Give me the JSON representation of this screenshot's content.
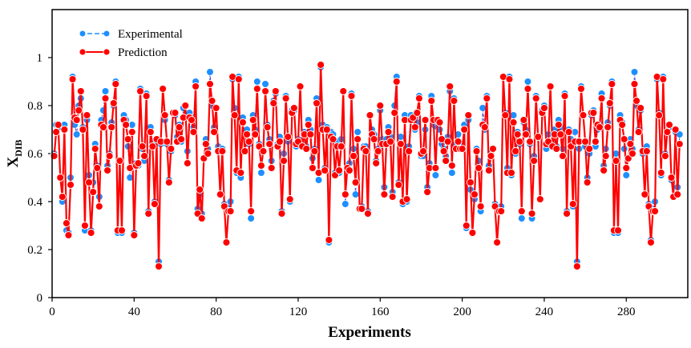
{
  "chart_data": {
    "type": "line",
    "title": "",
    "xlabel": "Experiments",
    "ylabel_main": "X",
    "ylabel_sub": "DIB",
    "xlim": [
      0,
      310
    ],
    "ylim": [
      0,
      1.2
    ],
    "xticks": [
      0,
      40,
      80,
      120,
      160,
      200,
      240,
      280
    ],
    "yticks": [
      0,
      0.2,
      0.4,
      0.6,
      0.8,
      1
    ],
    "ytick_labels": [
      "0",
      "0.2",
      "0.4",
      "0.6",
      "0.8",
      "1"
    ],
    "grid": false,
    "legend_position": "top-left",
    "x_start": 1,
    "x_step": 1,
    "series": [
      {
        "name": "Experimental",
        "color": "#1e8fff",
        "style": "dashed-line-with-markers",
        "values": [
          0.6,
          0.72,
          0.71,
          0.5,
          0.4,
          0.72,
          0.28,
          0.27,
          0.5,
          0.92,
          0.72,
          0.68,
          0.8,
          0.83,
          0.71,
          0.28,
          0.74,
          0.51,
          0.28,
          0.48,
          0.64,
          0.55,
          0.42,
          0.74,
          0.78,
          0.86,
          0.55,
          0.6,
          0.73,
          0.8,
          0.9,
          0.27,
          0.57,
          0.27,
          0.76,
          0.74,
          0.63,
          0.5,
          0.72,
          0.27,
          0.56,
          0.55,
          0.87,
          0.62,
          0.57,
          0.85,
          0.36,
          0.71,
          0.64,
          0.4,
          0.65,
          0.15,
          0.64,
          0.87,
          0.74,
          0.64,
          0.49,
          0.61,
          0.77,
          0.76,
          0.67,
          0.72,
          0.65,
          0.79,
          0.8,
          0.61,
          0.77,
          0.75,
          0.71,
          0.9,
          0.37,
          0.43,
          0.35,
          0.58,
          0.66,
          0.62,
          0.94,
          0.8,
          0.71,
          0.79,
          0.63,
          0.43,
          0.62,
          0.39,
          0.23,
          0.38,
          0.4,
          0.91,
          0.79,
          0.52,
          0.92,
          0.5,
          0.75,
          0.61,
          0.7,
          0.64,
          0.33,
          0.76,
          0.7,
          0.9,
          0.64,
          0.52,
          0.61,
          0.89,
          0.72,
          0.66,
          0.57,
          0.82,
          0.85,
          0.64,
          0.67,
          0.36,
          0.6,
          0.84,
          0.65,
          0.4,
          0.78,
          0.78,
          0.63,
          0.66,
          0.88,
          0.64,
          0.69,
          0.63,
          0.74,
          0.7,
          0.58,
          0.62,
          0.83,
          0.49,
          0.96,
          0.72,
          0.54,
          0.71,
          0.23,
          0.69,
          0.68,
          0.52,
          0.65,
          0.52,
          0.66,
          0.86,
          0.39,
          0.55,
          0.56,
          0.85,
          0.62,
          0.43,
          0.69,
          0.37,
          0.38,
          0.63,
          0.63,
          0.36,
          0.76,
          0.7,
          0.68,
          0.57,
          0.62,
          0.78,
          0.66,
          0.46,
          0.66,
          0.71,
          0.67,
          0.44,
          0.8,
          0.92,
          0.48,
          0.67,
          0.39,
          0.76,
          0.4,
          0.63,
          0.76,
          0.74,
          0.7,
          0.73,
          0.84,
          0.59,
          0.59,
          0.7,
          0.46,
          0.56,
          0.84,
          0.72,
          0.51,
          0.71,
          0.7,
          0.64,
          0.62,
          0.59,
          0.67,
          0.86,
          0.52,
          0.83,
          0.64,
          0.68,
          0.64,
          0.63,
          0.72,
          0.29,
          0.74,
          0.45,
          0.27,
          0.41,
          0.62,
          0.57,
          0.36,
          0.79,
          0.7,
          0.84,
          0.55,
          0.61,
          0.62,
          0.39,
          0.23,
          0.37,
          0.38,
          0.92,
          0.77,
          0.54,
          0.92,
          0.51,
          0.76,
          0.6,
          0.69,
          0.64,
          0.33,
          0.73,
          0.7,
          0.9,
          0.64,
          0.33,
          0.59,
          0.84,
          0.67,
          0.41,
          0.78,
          0.8,
          0.62,
          0.68,
          0.88,
          0.64,
          0.7,
          0.63,
          0.74,
          0.71,
          0.62,
          0.85,
          0.36,
          0.7,
          0.66,
          0.38,
          0.69,
          0.15,
          0.62,
          0.88,
          0.76,
          0.63,
          0.5,
          0.6,
          0.76,
          0.78,
          0.63,
          0.7,
          0.72,
          0.85,
          0.55,
          0.62,
          0.73,
          0.8,
          0.9,
          0.27,
          0.6,
          0.27,
          0.76,
          0.73,
          0.62,
          0.51,
          0.58,
          0.66,
          0.62,
          0.94,
          0.8,
          0.7,
          0.78,
          0.6,
          0.43,
          0.63,
          0.39,
          0.24,
          0.37,
          0.4,
          0.91,
          0.77,
          0.51,
          0.92,
          0.6,
          0.7,
          0.71,
          0.49,
          0.42,
          0.69,
          0.46,
          0.68
        ]
      },
      {
        "name": "Prediction",
        "color": "#ff0000",
        "style": "solid-line-with-markers",
        "values": [
          0.59,
          0.69,
          0.72,
          0.5,
          0.42,
          0.7,
          0.31,
          0.26,
          0.47,
          0.91,
          0.75,
          0.74,
          0.78,
          0.86,
          0.7,
          0.3,
          0.76,
          0.48,
          0.27,
          0.44,
          0.62,
          0.54,
          0.38,
          0.72,
          0.71,
          0.83,
          0.53,
          0.59,
          0.71,
          0.81,
          0.89,
          0.28,
          0.57,
          0.28,
          0.74,
          0.72,
          0.66,
          0.54,
          0.69,
          0.26,
          0.55,
          0.56,
          0.86,
          0.63,
          0.59,
          0.84,
          0.35,
          0.69,
          0.63,
          0.39,
          0.66,
          0.13,
          0.65,
          0.87,
          0.76,
          0.65,
          0.48,
          0.62,
          0.77,
          0.77,
          0.65,
          0.71,
          0.66,
          0.75,
          0.8,
          0.56,
          0.75,
          0.74,
          0.69,
          0.88,
          0.35,
          0.45,
          0.33,
          0.58,
          0.64,
          0.6,
          0.89,
          0.82,
          0.69,
          0.79,
          0.61,
          0.43,
          0.61,
          0.38,
          0.23,
          0.36,
          0.36,
          0.92,
          0.76,
          0.53,
          0.91,
          0.52,
          0.73,
          0.61,
          0.68,
          0.65,
          0.36,
          0.74,
          0.68,
          0.87,
          0.63,
          0.55,
          0.61,
          0.86,
          0.71,
          0.64,
          0.54,
          0.81,
          0.86,
          0.63,
          0.65,
          0.35,
          0.57,
          0.83,
          0.67,
          0.41,
          0.77,
          0.79,
          0.64,
          0.65,
          0.88,
          0.63,
          0.68,
          0.62,
          0.72,
          0.68,
          0.54,
          0.61,
          0.81,
          0.52,
          0.97,
          0.7,
          0.53,
          0.7,
          0.24,
          0.67,
          0.66,
          0.51,
          0.63,
          0.53,
          0.63,
          0.86,
          0.43,
          0.54,
          0.53,
          0.84,
          0.59,
          0.48,
          0.66,
          0.37,
          0.37,
          0.62,
          0.61,
          0.35,
          0.76,
          0.68,
          0.66,
          0.56,
          0.61,
          0.8,
          0.64,
          0.43,
          0.64,
          0.69,
          0.65,
          0.42,
          0.77,
          0.9,
          0.47,
          0.64,
          0.4,
          0.74,
          0.41,
          0.61,
          0.74,
          0.75,
          0.71,
          0.77,
          0.83,
          0.6,
          0.61,
          0.74,
          0.44,
          0.54,
          0.82,
          0.74,
          0.54,
          0.74,
          0.73,
          0.66,
          0.61,
          0.57,
          0.65,
          0.88,
          0.55,
          0.82,
          0.62,
          0.65,
          0.62,
          0.62,
          0.7,
          0.3,
          0.76,
          0.48,
          0.27,
          0.43,
          0.61,
          0.54,
          0.38,
          0.72,
          0.71,
          0.83,
          0.53,
          0.59,
          0.62,
          0.38,
          0.23,
          0.36,
          0.36,
          0.92,
          0.76,
          0.52,
          0.91,
          0.52,
          0.73,
          0.61,
          0.68,
          0.65,
          0.36,
          0.74,
          0.68,
          0.87,
          0.65,
          0.35,
          0.57,
          0.83,
          0.67,
          0.41,
          0.77,
          0.79,
          0.64,
          0.65,
          0.88,
          0.63,
          0.68,
          0.62,
          0.72,
          0.68,
          0.59,
          0.84,
          0.35,
          0.69,
          0.63,
          0.39,
          0.65,
          0.13,
          0.65,
          0.87,
          0.76,
          0.65,
          0.48,
          0.62,
          0.77,
          0.77,
          0.65,
          0.72,
          0.71,
          0.83,
          0.53,
          0.59,
          0.71,
          0.81,
          0.89,
          0.28,
          0.57,
          0.28,
          0.74,
          0.72,
          0.66,
          0.54,
          0.58,
          0.64,
          0.6,
          0.89,
          0.82,
          0.69,
          0.79,
          0.61,
          0.43,
          0.61,
          0.38,
          0.23,
          0.36,
          0.36,
          0.92,
          0.76,
          0.52,
          0.91,
          0.59,
          0.69,
          0.72,
          0.5,
          0.42,
          0.7,
          0.43,
          0.64
        ]
      }
    ]
  }
}
